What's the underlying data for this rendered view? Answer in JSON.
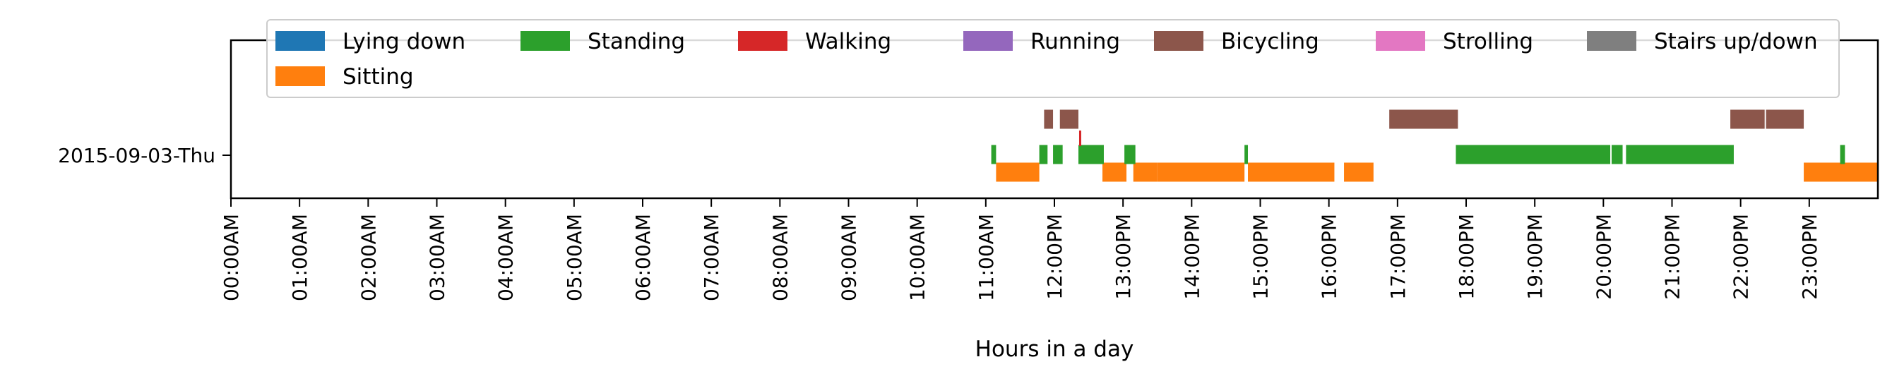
{
  "chart_data": {
    "type": "timeline",
    "xlabel": "Hours in a day",
    "ylabel": "",
    "xlim_hours": [
      0,
      24
    ],
    "x_tick_labels": [
      "00:00AM",
      "01:00AM",
      "02:00AM",
      "03:00AM",
      "04:00AM",
      "05:00AM",
      "06:00AM",
      "07:00AM",
      "08:00AM",
      "09:00AM",
      "10:00AM",
      "11:00AM",
      "12:00PM",
      "13:00PM",
      "14:00PM",
      "15:00PM",
      "16:00PM",
      "17:00PM",
      "18:00PM",
      "19:00PM",
      "20:00PM",
      "21:00PM",
      "22:00PM",
      "23:00PM"
    ],
    "y_tick_labels": [
      "2015-09-03-Thu"
    ],
    "grid": false,
    "legend_position": "top",
    "legend": [
      {
        "name": "Lying down",
        "color": "#1f77b4"
      },
      {
        "name": "Standing",
        "color": "#2ca02c"
      },
      {
        "name": "Walking",
        "color": "#d62728"
      },
      {
        "name": "Running",
        "color": "#9467bd"
      },
      {
        "name": "Bicycling",
        "color": "#8c564b"
      },
      {
        "name": "Strolling",
        "color": "#e377c2"
      },
      {
        "name": "Stairs up/down",
        "color": "#7f7f7f"
      },
      {
        "name": "Sitting",
        "color": "#ff7f0e"
      }
    ],
    "series": [
      {
        "name": "Sitting",
        "intervals": [
          [
            11.15,
            11.78
          ],
          [
            12.7,
            13.05
          ],
          [
            13.15,
            13.5
          ],
          [
            13.5,
            14.77
          ],
          [
            14.82,
            16.08
          ],
          [
            16.22,
            16.65
          ],
          [
            22.92,
            24.0
          ]
        ]
      },
      {
        "name": "Standing",
        "intervals": [
          [
            11.08,
            11.15
          ],
          [
            11.78,
            11.9
          ],
          [
            11.98,
            12.12
          ],
          [
            12.35,
            12.72
          ],
          [
            13.02,
            13.18
          ],
          [
            14.77,
            14.82
          ],
          [
            17.85,
            20.1
          ],
          [
            20.12,
            20.28
          ],
          [
            20.33,
            21.9
          ],
          [
            23.45,
            23.52
          ]
        ]
      },
      {
        "name": "Walking",
        "intervals": [
          [
            12.36,
            12.39
          ]
        ]
      },
      {
        "name": "Bicycling",
        "intervals": [
          [
            11.85,
            11.98
          ],
          [
            12.08,
            12.35
          ],
          [
            16.88,
            17.88
          ],
          [
            21.85,
            22.35
          ],
          [
            22.37,
            22.92
          ]
        ]
      }
    ]
  }
}
